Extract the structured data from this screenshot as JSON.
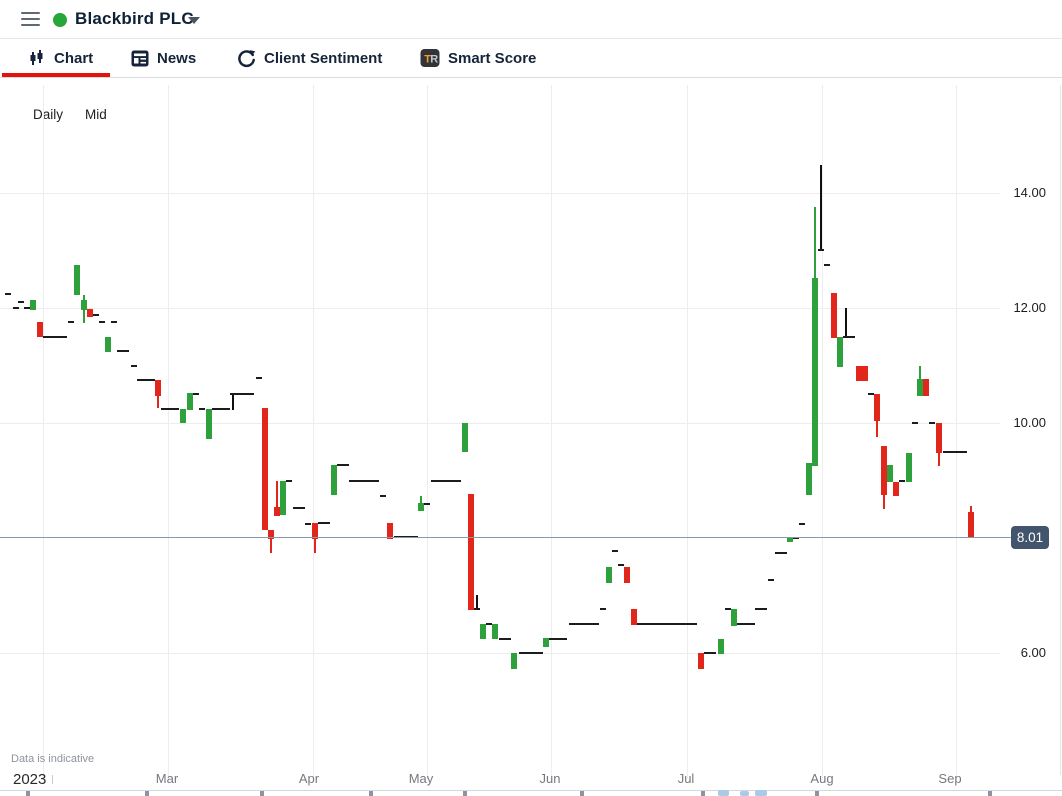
{
  "header": {
    "title": "Blackbird PLC",
    "status_color": "#26a737"
  },
  "tabs": [
    {
      "label": "Chart",
      "icon": "candlestick-icon",
      "active": true
    },
    {
      "label": "News",
      "icon": "news-icon",
      "active": false
    },
    {
      "label": "Client Sentiment",
      "icon": "refresh-icon",
      "active": false
    },
    {
      "label": "Smart Score",
      "icon": "tipranks-icon",
      "icon_text": "TR",
      "active": false
    }
  ],
  "toolbar": {
    "daily_label": "Daily",
    "mid_label": "Mid"
  },
  "footnote": "Data is indicative",
  "chart_data": {
    "type": "candlestick",
    "title": "Blackbird PLC daily price chart",
    "grid": true,
    "ylim": [
      5.5,
      14.8
    ],
    "colors": {
      "up": "#2fa13c",
      "down": "#e1261c",
      "neutral": "#1c1c1c",
      "doji_line": "#101010",
      "price_line": "#8b98a8",
      "badge_bg": "#42556c"
    },
    "scale": {
      "p1": 14,
      "y1": 193,
      "p2": 6,
      "y2": 653
    },
    "current_price": 8.01,
    "current_price_label": "8.01",
    "y_axis": {
      "ticks": [
        {
          "label": "14.00",
          "price": 14
        },
        {
          "label": "12.00",
          "price": 12
        },
        {
          "label": "10.00",
          "price": 10
        },
        {
          "label": "6.00",
          "price": 6
        }
      ]
    },
    "x_axis": {
      "ticks": [
        {
          "label": "2023",
          "x": 13,
          "grid_x": 43,
          "year": true
        },
        {
          "label": "Mar",
          "x": 167,
          "grid_x": 168
        },
        {
          "label": "Apr",
          "x": 309,
          "grid_x": 313
        },
        {
          "label": "May",
          "x": 421,
          "grid_x": 427
        },
        {
          "label": "Jun",
          "x": 550,
          "grid_x": 551
        },
        {
          "label": "Jul",
          "x": 686,
          "grid_x": 687
        },
        {
          "label": "Aug",
          "x": 822,
          "grid_x": 822
        },
        {
          "label": "Sep",
          "x": 950,
          "grid_x": 956
        }
      ],
      "bottom_ticks": [
        26,
        145,
        260,
        369,
        463,
        580,
        701,
        815,
        988
      ]
    },
    "candles_format": "[x_px, type(u=up,d=down,j=flat-dash,l=doji-line), bodyTop/price, bodyBottom, wickTop, wickBottom] in price units",
    "candles": [
      [
        8,
        "j",
        12.24
      ],
      [
        16,
        "j",
        12.0
      ],
      [
        21,
        "j",
        12.1
      ],
      [
        27,
        "j",
        12.0
      ],
      [
        33,
        "u",
        12.14,
        11.97
      ],
      [
        40,
        "d",
        11.76,
        11.5
      ],
      [
        46,
        "j",
        11.5
      ],
      [
        52,
        "j",
        11.5
      ],
      [
        58,
        "j",
        11.5
      ],
      [
        64,
        "j",
        11.5
      ],
      [
        71,
        "j",
        11.76
      ],
      [
        77,
        "u",
        12.75,
        12.23
      ],
      [
        84,
        "u",
        12.14,
        11.97,
        12.23,
        11.74
      ],
      [
        90,
        "d",
        11.98,
        11.84
      ],
      [
        96,
        "j",
        11.88
      ],
      [
        102,
        "j",
        11.76
      ],
      [
        108,
        "u",
        11.5,
        11.24
      ],
      [
        114,
        "j",
        11.76
      ],
      [
        120,
        "j",
        11.26
      ],
      [
        126,
        "j",
        11.26
      ],
      [
        134,
        "j",
        10.99
      ],
      [
        140,
        "j",
        10.75
      ],
      [
        146,
        "j",
        10.75
      ],
      [
        152,
        "j",
        10.75
      ],
      [
        158,
        "d",
        10.74,
        10.47,
        null,
        10.26
      ],
      [
        164,
        "j",
        10.24
      ],
      [
        170,
        "j",
        10.24
      ],
      [
        176,
        "j",
        10.24
      ],
      [
        183,
        "u",
        10.24,
        10.0
      ],
      [
        190,
        "u",
        10.52,
        10.23
      ],
      [
        196,
        "j",
        10.5
      ],
      [
        202,
        "j",
        10.24
      ],
      [
        209,
        "u",
        10.24,
        9.72
      ],
      [
        215,
        "j",
        10.24
      ],
      [
        221,
        "j",
        10.24
      ],
      [
        227,
        "j",
        10.24
      ],
      [
        233,
        "l",
        10.52,
        10.22,
        10.5
      ],
      [
        239,
        "j",
        10.5
      ],
      [
        245,
        "j",
        10.5
      ],
      [
        251,
        "j",
        10.5
      ],
      [
        259,
        "j",
        10.78
      ],
      [
        265,
        "d",
        10.26,
        8.14
      ],
      [
        271,
        "d",
        8.14,
        7.98,
        null,
        7.74
      ],
      [
        277,
        "d",
        8.54,
        8.38,
        9.0,
        null
      ],
      [
        283,
        "u",
        8.99,
        8.4
      ],
      [
        289,
        "j",
        9.0
      ],
      [
        296,
        "j",
        8.52
      ],
      [
        302,
        "j",
        8.52
      ],
      [
        308,
        "j",
        8.24
      ],
      [
        315,
        "d",
        8.26,
        7.98,
        null,
        7.74
      ],
      [
        321,
        "j",
        8.26
      ],
      [
        327,
        "j",
        8.26
      ],
      [
        334,
        "u",
        9.27,
        8.75
      ],
      [
        340,
        "j",
        9.27
      ],
      [
        346,
        "j",
        9.27
      ],
      [
        352,
        "j",
        9.0
      ],
      [
        358,
        "j",
        9.0
      ],
      [
        364,
        "j",
        9.0
      ],
      [
        370,
        "j",
        9.0
      ],
      [
        376,
        "j",
        9.0
      ],
      [
        383,
        "j",
        8.73
      ],
      [
        390,
        "d",
        8.26,
        7.98
      ],
      [
        397,
        "j",
        8.02
      ],
      [
        403,
        "j",
        8.02
      ],
      [
        409,
        "j",
        8.02
      ],
      [
        415,
        "j",
        8.02
      ],
      [
        421,
        "u",
        8.61,
        8.47,
        8.73,
        null
      ],
      [
        427,
        "j",
        8.59
      ],
      [
        434,
        "j",
        9.0
      ],
      [
        440,
        "j",
        9.0
      ],
      [
        446,
        "j",
        9.0
      ],
      [
        452,
        "j",
        9.0
      ],
      [
        458,
        "j",
        9.0
      ],
      [
        465,
        "u",
        10.0,
        9.5
      ],
      [
        471,
        "d",
        8.76,
        6.75
      ],
      [
        477,
        "l",
        7.01,
        6.76,
        6.77
      ],
      [
        483,
        "u",
        6.5,
        6.24
      ],
      [
        489,
        "j",
        6.5
      ],
      [
        495,
        "u",
        6.5,
        6.24
      ],
      [
        502,
        "j",
        6.24
      ],
      [
        508,
        "j",
        6.24
      ],
      [
        514,
        "u",
        6.0,
        5.72
      ],
      [
        522,
        "j",
        6.0
      ],
      [
        528,
        "j",
        6.0
      ],
      [
        534,
        "j",
        6.0
      ],
      [
        540,
        "j",
        6.0
      ],
      [
        546,
        "u",
        6.26,
        6.1
      ],
      [
        552,
        "j",
        6.24
      ],
      [
        558,
        "j",
        6.24
      ],
      [
        564,
        "j",
        6.24
      ],
      [
        572,
        "j",
        6.5
      ],
      [
        578,
        "j",
        6.5
      ],
      [
        584,
        "j",
        6.5
      ],
      [
        590,
        "j",
        6.5
      ],
      [
        596,
        "j",
        6.5
      ],
      [
        603,
        "j",
        6.76
      ],
      [
        609,
        "u",
        7.5,
        7.22
      ],
      [
        615,
        "j",
        7.77
      ],
      [
        621,
        "j",
        7.53
      ],
      [
        627,
        "d",
        7.5,
        7.22
      ],
      [
        634,
        "d",
        6.76,
        6.49
      ],
      [
        640,
        "j",
        6.5
      ],
      [
        646,
        "j",
        6.5
      ],
      [
        652,
        "j",
        6.5
      ],
      [
        658,
        "j",
        6.5
      ],
      [
        664,
        "j",
        6.5
      ],
      [
        670,
        "j",
        6.5
      ],
      [
        676,
        "j",
        6.5
      ],
      [
        682,
        "j",
        6.5
      ],
      [
        688,
        "j",
        6.5
      ],
      [
        694,
        "j",
        6.5
      ],
      [
        701,
        "d",
        6.0,
        5.72
      ],
      [
        707,
        "j",
        6.0
      ],
      [
        713,
        "j",
        6.0
      ],
      [
        721,
        "u",
        6.24,
        5.99
      ],
      [
        728,
        "j",
        6.76
      ],
      [
        734,
        "u",
        6.76,
        6.47
      ],
      [
        740,
        "j",
        6.5
      ],
      [
        746,
        "j",
        6.5
      ],
      [
        752,
        "j",
        6.5
      ],
      [
        758,
        "j",
        6.76
      ],
      [
        764,
        "j",
        6.76
      ],
      [
        771,
        "j",
        7.27
      ],
      [
        778,
        "j",
        7.74
      ],
      [
        784,
        "j",
        7.74
      ],
      [
        790,
        "u",
        8.02,
        7.93
      ],
      [
        796,
        "j",
        8.0
      ],
      [
        802,
        "j",
        8.24
      ],
      [
        809,
        "u",
        9.3,
        8.75
      ],
      [
        815,
        "u",
        12.52,
        9.25,
        13.76,
        null
      ],
      [
        821,
        "l",
        14.49,
        13.01,
        13.01
      ],
      [
        827,
        "j",
        12.75
      ],
      [
        834,
        "d",
        12.26,
        11.48
      ],
      [
        840,
        "u",
        11.5,
        10.97
      ],
      [
        846,
        "l",
        12.0,
        11.5,
        11.5
      ],
      [
        852,
        "j",
        11.5
      ],
      [
        859,
        "d",
        11.0,
        10.73
      ],
      [
        865,
        "d",
        11.0,
        10.73
      ],
      [
        871,
        "j",
        10.5
      ],
      [
        877,
        "d",
        10.5,
        10.03,
        null,
        9.76
      ],
      [
        884,
        "d",
        9.6,
        8.75,
        null,
        8.5
      ],
      [
        890,
        "u",
        9.27,
        8.97
      ],
      [
        896,
        "d",
        8.97,
        8.73
      ],
      [
        902,
        "j",
        9.0
      ],
      [
        909,
        "u",
        9.48,
        8.97
      ],
      [
        915,
        "j",
        10.0
      ],
      [
        920,
        "u",
        10.76,
        10.47,
        11.0,
        null
      ],
      [
        926,
        "d",
        10.76,
        10.47
      ],
      [
        932,
        "j",
        10.0
      ],
      [
        939,
        "d",
        10.0,
        9.48,
        null,
        9.25
      ],
      [
        946,
        "j",
        9.5
      ],
      [
        952,
        "j",
        9.5
      ],
      [
        958,
        "j",
        9.5
      ],
      [
        964,
        "j",
        9.5
      ],
      [
        971,
        "d",
        8.45,
        8.01,
        8.55,
        null
      ]
    ]
  }
}
